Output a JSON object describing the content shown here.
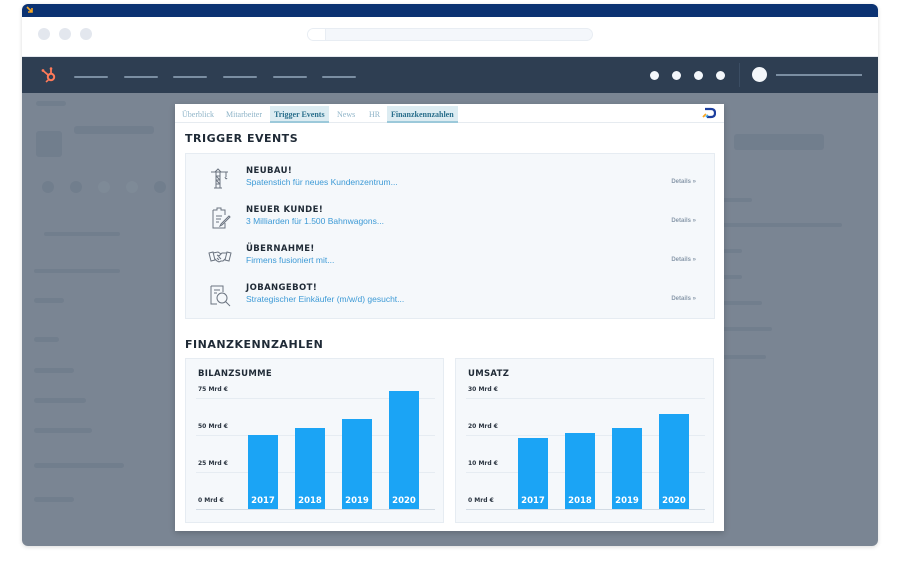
{
  "browser": {
    "window_dots": 3,
    "nav_items": 6,
    "nav_dots": 4
  },
  "modal": {
    "tabs": [
      {
        "label": "Überblick",
        "active": false
      },
      {
        "label": "Mitarbeiter",
        "active": false
      },
      {
        "label": "Trigger Events",
        "active": true
      },
      {
        "label": "News",
        "active": false
      },
      {
        "label": "HR",
        "active": false
      },
      {
        "label": "Finanzkennzahlen",
        "active": true
      }
    ],
    "trigger_events": {
      "heading": "TRIGGER EVENTS",
      "items": [
        {
          "icon": "crane-icon",
          "title": "NEUBAU!",
          "description": "Spatenstich für neues Kundenzentrum...",
          "details": "Details »"
        },
        {
          "icon": "clipboard-edit-icon",
          "title": "NEUER KUNDE!",
          "description": "3 Milliarden für 1.500 Bahnwagons...",
          "details": "Details »"
        },
        {
          "icon": "handshake-icon",
          "title": "ÜBERNAHME!",
          "description": "Firmens fusioniert mit...",
          "details": "Details »"
        },
        {
          "icon": "document-search-icon",
          "title": "JOBANGEBOT!",
          "description": "Strategischer Einkäufer (m/w/d) gesucht...",
          "details": "Details »"
        }
      ]
    },
    "finance": {
      "heading": "FINANZKENNZAHLEN"
    }
  },
  "colors": {
    "bar": "#1ba4f5",
    "link": "#3d9ad6",
    "nav_bg": "#2e3e52",
    "titlebar": "#0b3272",
    "hubspot_orange": "#ff7a59"
  },
  "chart_data": [
    {
      "type": "bar",
      "title": "BILANZSUMME",
      "categories": [
        "2017",
        "2018",
        "2019",
        "2020"
      ],
      "values": [
        50,
        55,
        61,
        80
      ],
      "unit": "Mrd €",
      "yticks": [
        "0 Mrd €",
        "25 Mrd €",
        "50 Mrd €",
        "75 Mrd €"
      ],
      "ylim": [
        0,
        85
      ],
      "grid": true,
      "xlabel": "",
      "ylabel": ""
    },
    {
      "type": "bar",
      "title": "UMSATZ",
      "categories": [
        "2017",
        "2018",
        "2019",
        "2020"
      ],
      "values": [
        19.3,
        20.5,
        22,
        25.6
      ],
      "unit": "Mrd €",
      "yticks": [
        "0 Mrd €",
        "10 Mrd €",
        "20 Mrd €",
        "30 Mrd €"
      ],
      "ylim": [
        0,
        34
      ],
      "grid": true,
      "xlabel": "",
      "ylabel": ""
    }
  ]
}
